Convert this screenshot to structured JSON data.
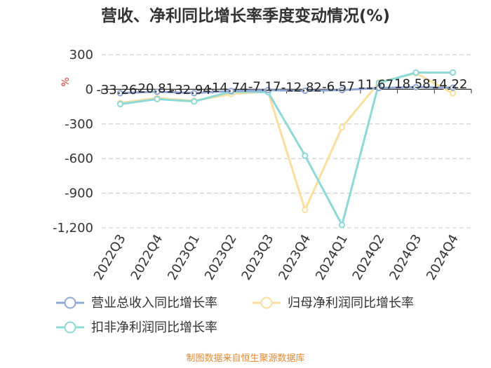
{
  "chart_data": {
    "type": "line",
    "title": "营收、净利同比增长率季度变动情况(%)",
    "ylabel": "%",
    "ylim": [
      -1200,
      300
    ],
    "yticks": [
      300,
      0,
      -300,
      -600,
      -900,
      -1200
    ],
    "ytick_labels": [
      "300",
      "0",
      "-300",
      "-600",
      "-900",
      "-1,200"
    ],
    "categories": [
      "2022Q3",
      "2022Q4",
      "2023Q1",
      "2023Q2",
      "2023Q3",
      "2023Q4",
      "2024Q1",
      "2024Q2",
      "2024Q3",
      "2024Q4"
    ],
    "series": [
      {
        "name": "营业总收入同比增长率",
        "color": "#8fa9d6",
        "values": [
          -33.26,
          -20.81,
          -32.94,
          -14.74,
          -7.17,
          -12.82,
          -6.57,
          11.67,
          18.58,
          14.22
        ],
        "labels": [
          "-33.26",
          "-20.81",
          "-32.94",
          "-14.74",
          "-7.17",
          "-12.82",
          "-6.57",
          "11.67",
          "18.58",
          "14.22"
        ]
      },
      {
        "name": "归母净利润同比增长率",
        "color": "#fbdf9c",
        "values": [
          -118,
          -75,
          -100,
          -40,
          -20,
          -1045,
          -330,
          60,
          140,
          -35
        ]
      },
      {
        "name": "扣非净利润同比增长率",
        "color": "#8dd9d9",
        "values": [
          -128,
          -85,
          -105,
          -20,
          -25,
          -575,
          -1175,
          55,
          145,
          145
        ]
      }
    ],
    "legend_position": "bottom",
    "grid": true
  },
  "source_text": "制图数据来自恒生聚源数据库"
}
